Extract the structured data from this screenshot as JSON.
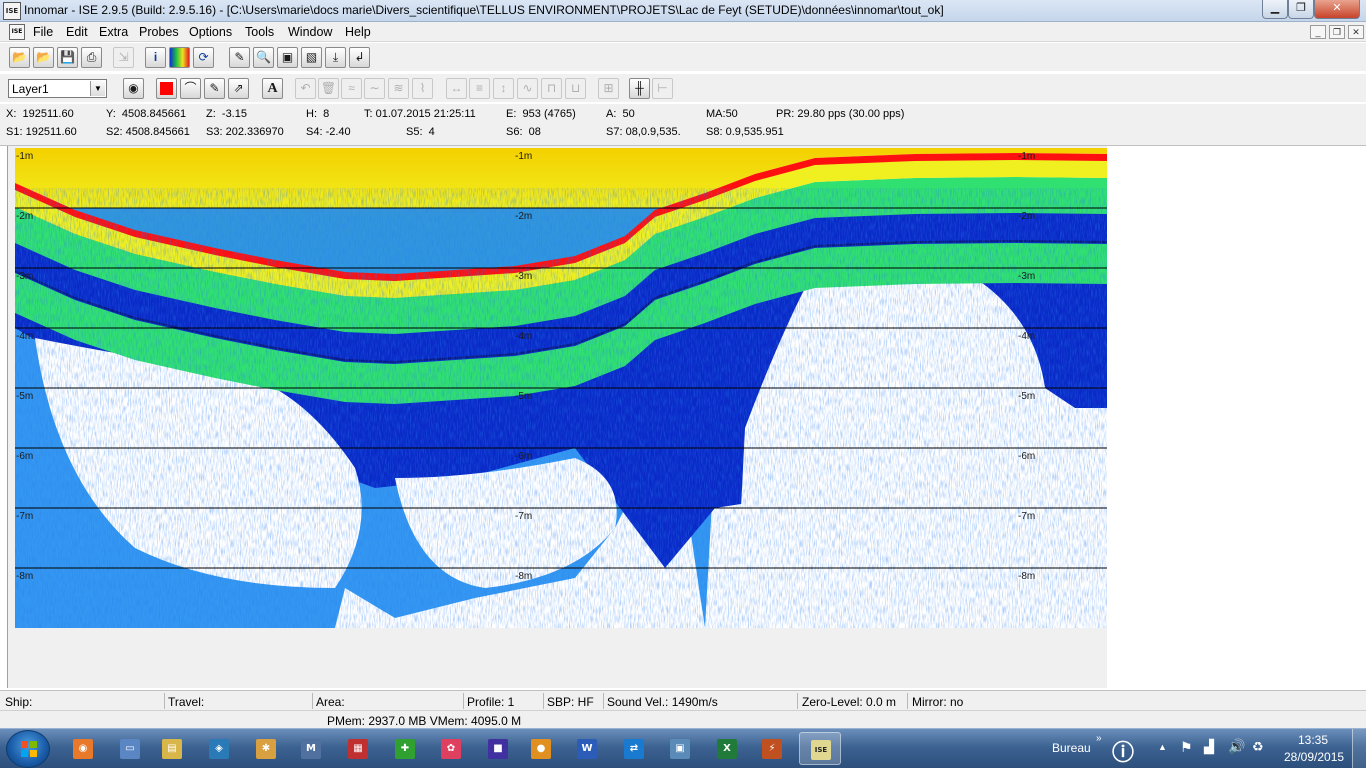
{
  "window": {
    "title": "Innomar - ISE 2.9.5 (Build: 2.9.5.16) - [C:\\Users\\marie\\docs marie\\Divers_scientifique\\TELLUS ENVIRONMENT\\PROJETS\\Lac de Feyt (SETUDE)\\données\\innomar\\tout_ok]",
    "icon_text": "ISE"
  },
  "menu": [
    "File",
    "Edit",
    "Extra",
    "Probes",
    "Options",
    "Tools",
    "Window",
    "Help"
  ],
  "toolbar1": [
    "open-folder-icon",
    "open-file-icon",
    "save-icon",
    "print-icon",
    "export-icon",
    "info-icon",
    "palette-icon",
    "refresh-icon",
    "pen-icon",
    "zoom-icon",
    "fit-icon",
    "edit-icon",
    "down-arrow-icon",
    "corner-arrow-icon"
  ],
  "toolbar2": {
    "layer_value": "Layer1",
    "text_tool_label": "A",
    "accent_color": "#ff0000"
  },
  "info": {
    "row1": [
      {
        "label": "X:",
        "value": "192511.60"
      },
      {
        "label": "Y:",
        "value": "4508.845661"
      },
      {
        "label": "Z:",
        "value": "-3.15"
      },
      {
        "label": "H:",
        "value": "8"
      },
      {
        "label": "T:",
        "value": "01.07.2015 21:25:11"
      },
      {
        "label": "E:",
        "value": "953 (4765)"
      },
      {
        "label": "A:",
        "value": "50"
      },
      {
        "label": "MA:",
        "value": "50"
      },
      {
        "label": "PR:",
        "value": "29.80 pps (30.00 pps)"
      }
    ],
    "row2": [
      {
        "label": "S1:",
        "value": "192511.60"
      },
      {
        "label": "S2:",
        "value": "4508.845661"
      },
      {
        "label": "S3:",
        "value": "202.336970"
      },
      {
        "label": "S4:",
        "value": "-2.40"
      },
      {
        "label": "S5:",
        "value": "4"
      },
      {
        "label": "S6:",
        "value": "08"
      },
      {
        "label": "S7:",
        "value": "08,0.9,535."
      },
      {
        "label": "S8:",
        "value": "0.9,535.951"
      }
    ]
  },
  "echogram": {
    "depth_labels": [
      "-1m",
      "-2m",
      "-3m",
      "-4m",
      "-5m",
      "-6m",
      "-7m",
      "-8m"
    ],
    "colors": {
      "high": "#ff1010",
      "mid": "#f0f020",
      "low": "#30e070",
      "weak": "#0a2ac8",
      "faint": "#1e8cf0"
    }
  },
  "status": {
    "ship": "Ship:",
    "travel": "Travel:",
    "area": "Area:",
    "profile": "Profile: 1",
    "sbp": "SBP: HF",
    "sound_vel": "Sound Vel.: 1490m/s",
    "zero_level": "Zero-Level: 0.0 m",
    "mirror": "Mirror: no",
    "memory": "PMem: 2937.0 MB VMem: 4095.0 M"
  },
  "taskbar": {
    "apps": [
      "firefox",
      "explorer-window",
      "explorer-folder",
      "app-1",
      "app-2",
      "app-3",
      "app-4",
      "app-5",
      "app-6",
      "app-7",
      "app-8",
      "word",
      "teamviewer",
      "app-9",
      "excel",
      "app-10",
      "ise"
    ],
    "bureau": "Bureau",
    "time": "13:35",
    "date": "28/09/2015"
  }
}
